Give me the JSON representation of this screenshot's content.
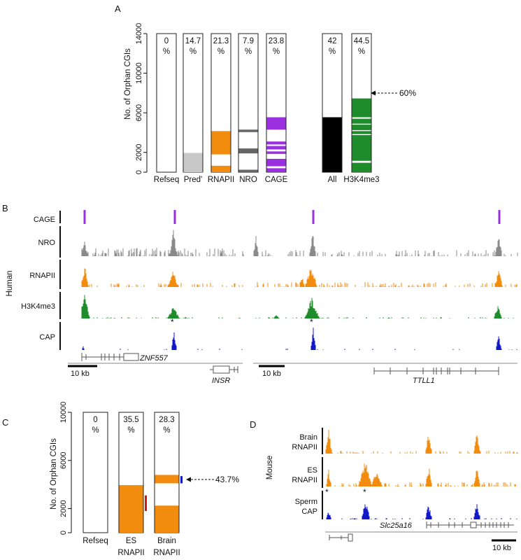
{
  "colors": {
    "orange": "#f28c0f",
    "purple": "#9b30e0",
    "green": "#1e8c2a",
    "blue": "#1018c8",
    "gray": "#8a8a8a",
    "dark_gray": "#666666",
    "light_gray": "#c8c8c8",
    "black": "#000000",
    "red": "#d01818"
  },
  "panel_labels": {
    "a": "A",
    "b": "B",
    "c": "C",
    "d": "D"
  },
  "chart_data": [
    {
      "type": "bar",
      "ylabel": "No. of Orphan CGIs",
      "ylim": [
        0,
        14000
      ],
      "yticks": [
        0,
        2000,
        6000,
        10000,
        14000
      ],
      "columns": [
        {
          "category": "Refseq",
          "pct": "0",
          "pct_unit": "%",
          "max": 14000,
          "segments": []
        },
        {
          "category": "Pred'",
          "pct": "14.7",
          "pct_unit": "%",
          "max": 14000,
          "segments": [
            {
              "from": 0,
              "to": 1950,
              "color": "light_gray"
            }
          ]
        },
        {
          "category": "RNAPII",
          "pct": "21.3",
          "pct_unit": "%",
          "max": 14000,
          "segments": [
            {
              "from": 0,
              "to": 650,
              "color": "orange"
            },
            {
              "from": 1800,
              "to": 4150,
              "color": "orange"
            }
          ]
        },
        {
          "category": "NRO",
          "pct": "7.9",
          "pct_unit": "%",
          "max": 14000,
          "segments": [
            {
              "from": 0,
              "to": 250,
              "color": "dark_gray"
            },
            {
              "from": 1900,
              "to": 2400,
              "color": "dark_gray"
            },
            {
              "from": 4050,
              "to": 4300,
              "color": "dark_gray"
            }
          ]
        },
        {
          "category": "CAGE",
          "pct": "23.8",
          "pct_unit": "%",
          "max": 14000,
          "segments": [
            {
              "from": 0,
              "to": 400,
              "color": "purple"
            },
            {
              "from": 600,
              "to": 1350,
              "color": "purple"
            },
            {
              "from": 1850,
              "to": 2100,
              "color": "purple"
            },
            {
              "from": 2300,
              "to": 2650,
              "color": "purple"
            },
            {
              "from": 2800,
              "to": 3100,
              "color": "purple"
            },
            {
              "from": 4300,
              "to": 5550,
              "color": "purple"
            }
          ]
        },
        {
          "category": "All",
          "pct": "42",
          "pct_unit": "%",
          "max": 14000,
          "segments": [
            {
              "from": 0,
              "to": 5550,
              "color": "black"
            }
          ]
        },
        {
          "category": "H3K4me3",
          "pct": "44.5",
          "pct_unit": "%",
          "max": 14000,
          "segments": [
            {
              "from": 0,
              "to": 950,
              "color": "green"
            },
            {
              "from": 1150,
              "to": 3750,
              "color": "green"
            },
            {
              "from": 3850,
              "to": 4150,
              "color": "green"
            },
            {
              "from": 4250,
              "to": 4800,
              "color": "green"
            },
            {
              "from": 4900,
              "to": 5400,
              "color": "green"
            },
            {
              "from": 5550,
              "to": 7450,
              "color": "green"
            }
          ]
        }
      ],
      "annotation": {
        "text": "60%",
        "at": 7450
      }
    },
    {
      "type": "bar",
      "ylabel": "No. of Orphan CGIs",
      "ylim": [
        0,
        10000
      ],
      "yticks": [
        0,
        2000,
        6000,
        10000
      ],
      "columns": [
        {
          "category": "Refseq",
          "pct": "0",
          "pct_unit": "%",
          "max": 10000,
          "segments": []
        },
        {
          "category": "ES RNAPII",
          "label_lines": [
            "ES",
            "RNAPII"
          ],
          "pct": "35.5",
          "pct_unit": "%",
          "max": 10000,
          "segments": [
            {
              "from": 0,
              "to": 3950,
              "color": "orange"
            }
          ],
          "marker": {
            "from": 1800,
            "to": 3100,
            "color": "red"
          }
        },
        {
          "category": "Brain RNAPII",
          "label_lines": [
            "Brain",
            "RNAPII"
          ],
          "pct": "28.3",
          "pct_unit": "%",
          "max": 10000,
          "segments": [
            {
              "from": 0,
              "to": 2250,
              "color": "orange"
            },
            {
              "from": 4100,
              "to": 4800,
              "color": "orange"
            }
          ],
          "marker": {
            "from": 4100,
            "to": 4700,
            "color": "blue"
          }
        }
      ],
      "annotation": {
        "text": "43.7%",
        "at": 4400
      }
    }
  ],
  "panel_b": {
    "species": "Human",
    "tracks": [
      "CAGE",
      "NRO",
      "RNAPII",
      "H3K4me3",
      "CAP"
    ],
    "scalebar_left": "10 kb",
    "scalebar_right": "10 kb",
    "genes": {
      "znf": "ZNF557",
      "insr": "INSR",
      "ttll": "TTLL1"
    },
    "asterisk": "*"
  },
  "panel_d": {
    "species": "Mouse",
    "tracks": [
      [
        "Brain",
        "RNAPII"
      ],
      [
        "ES",
        "RNAPII"
      ],
      [
        "Sperm",
        "CAP"
      ]
    ],
    "gene": "Slc25a16",
    "scalebar": "10 kb",
    "asterisk": "*"
  }
}
